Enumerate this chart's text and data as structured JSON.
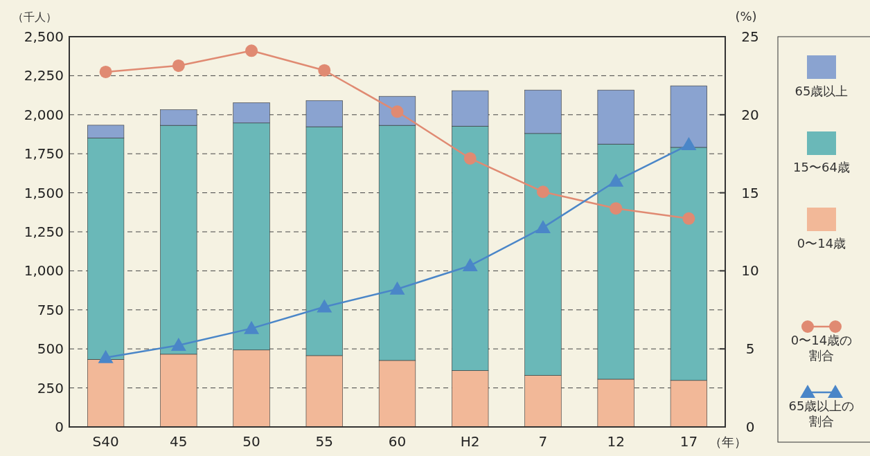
{
  "chart_data": {
    "type": "bar",
    "stacked": true,
    "ylabel": "（千人）",
    "y2label": "(%)",
    "xlabel": "（年）",
    "categories": [
      "S40",
      "45",
      "50",
      "55",
      "60",
      "H2",
      "7",
      "12",
      "17"
    ],
    "series": [
      {
        "name": "0〜14歳",
        "color": "#f2b898",
        "values": [
          433,
          466,
          493,
          457,
          426,
          361,
          330,
          306,
          298
        ]
      },
      {
        "name": "15〜64歳",
        "color": "#6ab8b8",
        "values": [
          1418,
          1466,
          1454,
          1466,
          1506,
          1566,
          1550,
          1506,
          1493
        ]
      },
      {
        "name": "65歳以上",
        "color": "#8aa3d0",
        "values": [
          82,
          100,
          130,
          168,
          186,
          227,
          278,
          346,
          394
        ]
      },
      {
        "name": "0〜14歳の割合",
        "type": "line",
        "axis": "y2",
        "marker": "circle",
        "color": "#e08a72",
        "values": [
          22.74,
          23.14,
          24.1,
          22.84,
          20.2,
          17.2,
          15.06,
          14.0,
          13.35
        ]
      },
      {
        "name": "65歳以上の割合",
        "type": "line",
        "axis": "y2",
        "marker": "triangle",
        "color": "#4a86c8",
        "values": [
          4.44,
          5.23,
          6.31,
          7.69,
          8.83,
          10.33,
          12.77,
          15.75,
          18.08
        ]
      }
    ],
    "ylim": [
      0,
      2500
    ],
    "yticks": [
      {
        "value": 0,
        "label": "0"
      },
      {
        "value": 250,
        "label": "250"
      },
      {
        "value": 500,
        "label": "500"
      },
      {
        "value": 750,
        "label": "750"
      },
      {
        "value": 1000,
        "label": "1,000"
      },
      {
        "value": 1250,
        "label": "1,250"
      },
      {
        "value": 1500,
        "label": "1,500"
      },
      {
        "value": 1750,
        "label": "1,750"
      },
      {
        "value": 2000,
        "label": "2,000"
      },
      {
        "value": 2250,
        "label": "2,250"
      },
      {
        "value": 2500,
        "label": "2,500"
      }
    ],
    "y2lim": [
      0,
      25
    ],
    "y2ticks": [
      0,
      5,
      10,
      15,
      20,
      25
    ],
    "grid": "y",
    "legend": "right",
    "line_style": "solid"
  }
}
